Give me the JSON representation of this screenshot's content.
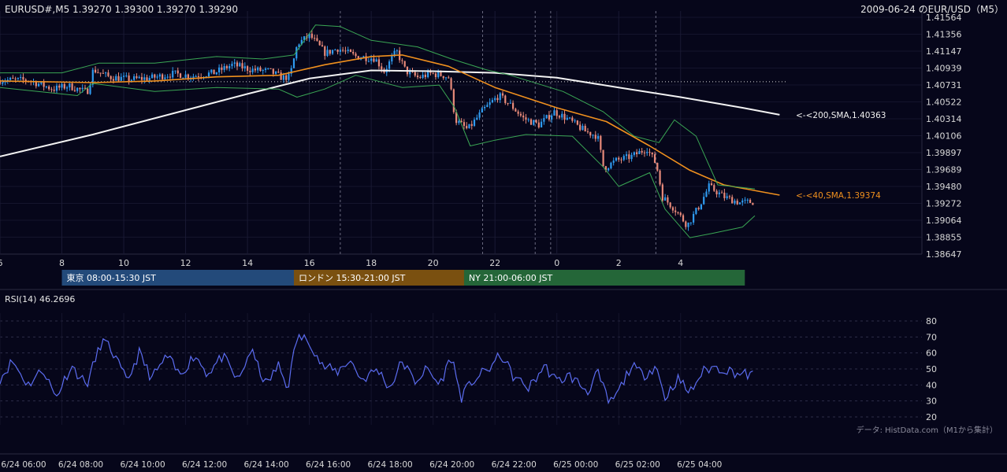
{
  "header": {
    "symbol_quote": "EURUSD#,M5 1.39270 1.39300 1.39270 1.39290",
    "title_right": "2009-06-24 のEUR/USD（M5）"
  },
  "colors": {
    "background": "#06061a",
    "bull_candle": "#2f9bf0",
    "bear_candle": "#e88a7a",
    "sma40": "#f0901e",
    "sma200": "#f2f2f2",
    "bollinger": "#3aa654",
    "rsi": "#5b6cf0",
    "session_tokyo": "#234a7a",
    "session_london": "#7a5010",
    "session_ny": "#246638"
  },
  "chart_data": [
    {
      "type": "candlestick",
      "title": "2009-06-24 のEUR/USD（M5）",
      "symbol": "EURUSD#,M5",
      "ohlc_last": {
        "open": 1.3927,
        "high": 1.393,
        "low": 1.3927,
        "close": 1.3929
      },
      "ylim": [
        1.38647,
        1.41564
      ],
      "y_ticks": [
        "1.41564",
        "1.41356",
        "1.41147",
        "1.40939",
        "1.40731",
        "1.40522",
        "1.40314",
        "1.40106",
        "1.39897",
        "1.39689",
        "1.39480",
        "1.39272",
        "1.39064",
        "1.38855",
        "1.38647"
      ],
      "x_ticks": [
        "6",
        "8",
        "10",
        "12",
        "14",
        "16",
        "18",
        "20",
        "22",
        "0",
        "2",
        "4"
      ],
      "x_tick_hours": [
        6,
        8,
        10,
        12,
        14,
        16,
        18,
        20,
        22,
        24,
        26,
        28
      ],
      "xlim_hours": [
        6,
        35.8
      ],
      "dashed_vlines_hours": [
        17,
        21.6,
        23.3,
        23.8,
        27.2
      ],
      "reference_hline": 1.4077,
      "anchors": [
        [
          6.0,
          1.4079
        ],
        [
          7.0,
          1.4079
        ],
        [
          7.8,
          1.4068
        ],
        [
          8.3,
          1.4072
        ],
        [
          8.9,
          1.4064
        ],
        [
          9.1,
          1.4092
        ],
        [
          9.6,
          1.4083
        ],
        [
          10.3,
          1.408
        ],
        [
          11.0,
          1.4082
        ],
        [
          11.7,
          1.4087
        ],
        [
          12.3,
          1.4084
        ],
        [
          13.0,
          1.4088
        ],
        [
          13.6,
          1.4098
        ],
        [
          14.2,
          1.4092
        ],
        [
          14.8,
          1.409
        ],
        [
          15.2,
          1.4082
        ],
        [
          15.45,
          1.4083
        ],
        [
          15.7,
          1.4124
        ],
        [
          16.1,
          1.4134
        ],
        [
          16.6,
          1.4112
        ],
        [
          17.0,
          1.4118
        ],
        [
          17.6,
          1.4108
        ],
        [
          18.2,
          1.4106
        ],
        [
          18.5,
          1.409
        ],
        [
          18.9,
          1.4115
        ],
        [
          19.2,
          1.409
        ],
        [
          19.6,
          1.4082
        ],
        [
          20.0,
          1.4087
        ],
        [
          20.4,
          1.4085
        ],
        [
          20.6,
          1.4082
        ],
        [
          20.8,
          1.403
        ],
        [
          21.2,
          1.4018
        ],
        [
          21.7,
          1.4042
        ],
        [
          22.2,
          1.406
        ],
        [
          22.6,
          1.4048
        ],
        [
          23.0,
          1.4032
        ],
        [
          23.5,
          1.4024
        ],
        [
          24.0,
          1.404
        ],
        [
          24.4,
          1.4032
        ],
        [
          25.0,
          1.4016
        ],
        [
          25.4,
          1.401
        ],
        [
          25.6,
          1.397
        ],
        [
          26.0,
          1.398
        ],
        [
          26.5,
          1.3985
        ],
        [
          27.0,
          1.3995
        ],
        [
          27.3,
          1.3975
        ],
        [
          27.5,
          1.3935
        ],
        [
          27.9,
          1.392
        ],
        [
          28.3,
          1.39
        ],
        [
          28.7,
          1.3925
        ],
        [
          29.0,
          1.3948
        ],
        [
          29.5,
          1.3935
        ],
        [
          30.0,
          1.3928
        ],
        [
          30.4,
          1.3929
        ]
      ],
      "series": [
        {
          "name": "<-<200,SMA,1.40363",
          "type": "line",
          "label_value": 1.40363,
          "points": [
            [
              6.0,
              1.3985
            ],
            [
              9.0,
              1.4012
            ],
            [
              12.0,
              1.4042
            ],
            [
              14.0,
              1.4062
            ],
            [
              16.0,
              1.4081
            ],
            [
              18.0,
              1.4091
            ],
            [
              20.0,
              1.409
            ],
            [
              22.0,
              1.4088
            ],
            [
              24.0,
              1.4082
            ],
            [
              26.0,
              1.407
            ],
            [
              28.0,
              1.4058
            ],
            [
              30.0,
              1.4045
            ],
            [
              31.2,
              1.40363
            ]
          ]
        },
        {
          "name": "<-<40,SMA,1.39374",
          "type": "line",
          "label_value": 1.39374,
          "points": [
            [
              6.0,
              1.4078
            ],
            [
              9.0,
              1.4076
            ],
            [
              11.0,
              1.4078
            ],
            [
              13.0,
              1.4083
            ],
            [
              15.0,
              1.4085
            ],
            [
              16.5,
              1.4098
            ],
            [
              18.0,
              1.4108
            ],
            [
              19.0,
              1.411
            ],
            [
              20.5,
              1.4096
            ],
            [
              22.0,
              1.407
            ],
            [
              24.0,
              1.4045
            ],
            [
              25.6,
              1.4028
            ],
            [
              27.0,
              1.3998
            ],
            [
              28.3,
              1.3968
            ],
            [
              29.4,
              1.395
            ],
            [
              31.2,
              1.39374
            ]
          ]
        },
        {
          "name": "Bollinger upper",
          "type": "line",
          "points": [
            [
              6.0,
              1.4088
            ],
            [
              8.0,
              1.4088
            ],
            [
              9.2,
              1.41
            ],
            [
              11.0,
              1.41
            ],
            [
              13.0,
              1.4108
            ],
            [
              14.5,
              1.4105
            ],
            [
              15.5,
              1.411
            ],
            [
              16.2,
              1.4147
            ],
            [
              17.0,
              1.4145
            ],
            [
              18.0,
              1.4128
            ],
            [
              19.5,
              1.412
            ],
            [
              20.6,
              1.4105
            ],
            [
              21.7,
              1.4092
            ],
            [
              22.5,
              1.4085
            ],
            [
              24.2,
              1.4065
            ],
            [
              25.5,
              1.404
            ],
            [
              26.5,
              1.401
            ],
            [
              27.3,
              1.4002
            ],
            [
              27.8,
              1.403
            ],
            [
              28.5,
              1.401
            ],
            [
              29.2,
              1.395
            ],
            [
              30.4,
              1.3945
            ]
          ]
        },
        {
          "name": "Bollinger lower",
          "type": "line",
          "points": [
            [
              6.0,
              1.407
            ],
            [
              8.5,
              1.406
            ],
            [
              9.0,
              1.4075
            ],
            [
              11.0,
              1.4065
            ],
            [
              13.0,
              1.407
            ],
            [
              15.0,
              1.4068
            ],
            [
              15.6,
              1.4058
            ],
            [
              16.5,
              1.4068
            ],
            [
              17.5,
              1.4085
            ],
            [
              19.0,
              1.407
            ],
            [
              20.2,
              1.4073
            ],
            [
              20.7,
              1.4045
            ],
            [
              21.2,
              1.3998
            ],
            [
              22.0,
              1.4005
            ],
            [
              23.0,
              1.4012
            ],
            [
              24.5,
              1.401
            ],
            [
              25.5,
              1.3972
            ],
            [
              26.0,
              1.3948
            ],
            [
              27.0,
              1.3965
            ],
            [
              27.5,
              1.392
            ],
            [
              28.3,
              1.3885
            ],
            [
              29.0,
              1.389
            ],
            [
              30.0,
              1.3898
            ],
            [
              30.4,
              1.3912
            ]
          ]
        }
      ],
      "series_labels": [
        {
          "name": "<-<200,SMA,1.40363",
          "value": 1.40363
        },
        {
          "name": "<-<40,SMA,1.39374",
          "value": 1.39374
        }
      ]
    },
    {
      "type": "line",
      "title": "RSI(14) 46.2696",
      "ylim": [
        17,
        82
      ],
      "y_ticks": [
        "80",
        "70",
        "60",
        "50",
        "40",
        "30",
        "20"
      ],
      "y_tick_values": [
        80,
        70,
        60,
        50,
        40,
        30,
        20
      ],
      "xlim_hours": [
        6,
        35.8
      ],
      "x_ticks": [
        "6/24 06:00",
        "6/24 08:00",
        "6/24 10:00",
        "6/24 12:00",
        "6/24 14:00",
        "6/24 16:00",
        "6/24 18:00",
        "6/24 20:00",
        "6/24 22:00",
        "6/25 00:00",
        "6/25 02:00",
        "6/25 04:00"
      ],
      "x_tick_hours": [
        6,
        8,
        10,
        12,
        14,
        16,
        18,
        20,
        22,
        24,
        26,
        28
      ],
      "last_value": 46.2696,
      "anchors": [
        [
          6.0,
          44
        ],
        [
          6.4,
          55
        ],
        [
          6.9,
          40
        ],
        [
          7.4,
          50
        ],
        [
          7.8,
          32
        ],
        [
          8.3,
          52
        ],
        [
          8.8,
          40
        ],
        [
          9.3,
          68
        ],
        [
          9.6,
          62
        ],
        [
          10.1,
          42
        ],
        [
          10.5,
          60
        ],
        [
          10.9,
          44
        ],
        [
          11.4,
          58
        ],
        [
          11.8,
          46
        ],
        [
          12.3,
          59
        ],
        [
          12.7,
          47
        ],
        [
          13.2,
          58
        ],
        [
          13.7,
          42
        ],
        [
          14.1,
          62
        ],
        [
          14.6,
          40
        ],
        [
          15.0,
          52
        ],
        [
          15.3,
          38
        ],
        [
          15.6,
          70
        ],
        [
          16.0,
          68
        ],
        [
          16.4,
          52
        ],
        [
          16.9,
          48
        ],
        [
          17.3,
          56
        ],
        [
          17.7,
          43
        ],
        [
          18.2,
          50
        ],
        [
          18.6,
          38
        ],
        [
          19.0,
          55
        ],
        [
          19.4,
          42
        ],
        [
          19.8,
          50
        ],
        [
          20.2,
          40
        ],
        [
          20.6,
          58
        ],
        [
          20.9,
          32
        ],
        [
          21.3,
          43
        ],
        [
          21.8,
          50
        ],
        [
          22.2,
          59
        ],
        [
          22.6,
          45
        ],
        [
          23.1,
          38
        ],
        [
          23.6,
          52
        ],
        [
          24.0,
          42
        ],
        [
          24.4,
          46
        ],
        [
          25.0,
          36
        ],
        [
          25.3,
          48
        ],
        [
          25.7,
          28
        ],
        [
          26.0,
          36
        ],
        [
          26.4,
          52
        ],
        [
          26.8,
          46
        ],
        [
          27.2,
          52
        ],
        [
          27.5,
          32
        ],
        [
          27.9,
          44
        ],
        [
          28.3,
          35
        ],
        [
          28.7,
          48
        ],
        [
          29.0,
          51
        ],
        [
          29.4,
          50
        ],
        [
          29.9,
          47
        ],
        [
          30.4,
          46
        ]
      ]
    }
  ],
  "sessions": [
    {
      "label": "東京 08:00-15:30 JST",
      "start_hour": 8,
      "end_hour": 15.5,
      "color": "#234a7a"
    },
    {
      "label": "ロンドン 15:30-21:00 JST",
      "start_hour": 15.5,
      "end_hour": 21,
      "color": "#7a5010"
    },
    {
      "label": "NY 21:00-06:00 JST",
      "start_hour": 21,
      "end_hour": 30.0,
      "color": "#246638"
    }
  ],
  "footer": {
    "source": "データ: HistData.com（M1から集計）"
  }
}
